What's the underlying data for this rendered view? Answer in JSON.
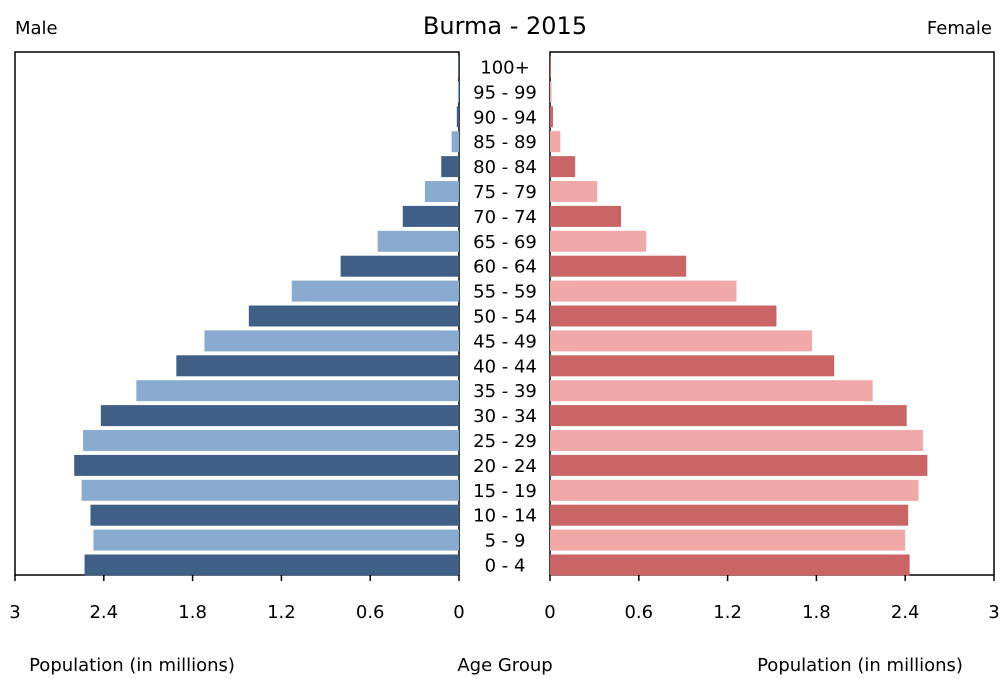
{
  "chart_data": {
    "type": "bar",
    "title": "Burma - 2015",
    "left_label": "Male",
    "right_label": "Female",
    "xlabel_left": "Population (in millions)",
    "xlabel_right": "Population (in millions)",
    "center_label": "Age Group",
    "xlim": [
      0,
      3
    ],
    "ticks": [
      "0",
      "0.6",
      "1.2",
      "1.8",
      "2.4",
      "3"
    ],
    "tick_values": [
      0,
      0.6,
      1.2,
      1.8,
      2.4,
      3
    ],
    "categories": [
      "0 - 4",
      "5 - 9",
      "10 - 14",
      "15 - 19",
      "20 - 24",
      "25 - 29",
      "30 - 34",
      "35 - 39",
      "40 - 44",
      "45 - 49",
      "50 - 54",
      "55 - 59",
      "60 - 64",
      "65 - 69",
      "70 - 74",
      "75 - 79",
      "80 - 84",
      "85 - 89",
      "90 - 94",
      "95 - 99",
      "100+"
    ],
    "series": [
      {
        "name": "Male",
        "values": [
          2.53,
          2.47,
          2.49,
          2.55,
          2.6,
          2.54,
          2.42,
          2.18,
          1.91,
          1.72,
          1.42,
          1.13,
          0.8,
          0.55,
          0.38,
          0.23,
          0.12,
          0.05,
          0.015,
          0.008,
          0.004
        ],
        "colors": [
          "#3f5f87",
          "#8aabd0"
        ]
      },
      {
        "name": "Female",
        "values": [
          2.43,
          2.4,
          2.42,
          2.49,
          2.55,
          2.52,
          2.41,
          2.18,
          1.92,
          1.77,
          1.53,
          1.26,
          0.92,
          0.65,
          0.48,
          0.32,
          0.17,
          0.07,
          0.02,
          0.01,
          0.005
        ],
        "colors": [
          "#c96565",
          "#f0a8a8"
        ]
      }
    ],
    "grid": false,
    "legend": "none"
  }
}
